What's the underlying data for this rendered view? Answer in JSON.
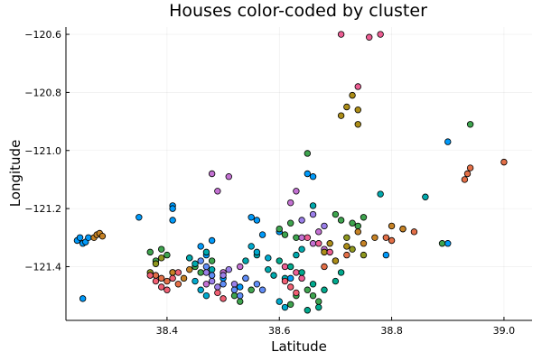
{
  "chart_data": {
    "type": "scatter",
    "title": "Houses color-coded by cluster",
    "xlabel": "Latitude",
    "ylabel": "Longitude",
    "xlim": [
      38.22,
      39.05
    ],
    "ylim": [
      -121.585,
      -120.575
    ],
    "xticks": [
      38.4,
      38.6,
      38.8,
      39.0
    ],
    "xtick_labels": [
      "38.4",
      "38.6",
      "38.8",
      "39.0"
    ],
    "yticks": [
      -121.4,
      -121.2,
      -121.0,
      -120.8,
      -120.6
    ],
    "ytick_labels": [
      "−121.4",
      "−121.2",
      "−121.0",
      "−120.8",
      "−120.6"
    ],
    "grid": true,
    "legend": false,
    "colors": [
      "#009AFA",
      "#E36F47",
      "#3EA44E",
      "#C371D2",
      "#AC8D18",
      "#00A9AD",
      "#ED5E93",
      "#C68225",
      "#00A98D",
      "#8E971E",
      "#00A9CD",
      "#9B7FE9",
      "#618DF7",
      "#F05F73"
    ],
    "series": [
      {
        "color_index": 0,
        "x": [
          38.24,
          38.245,
          38.25,
          38.255,
          38.26,
          38.25,
          38.35,
          38.41,
          38.41,
          38.41,
          38.44,
          38.46,
          38.48,
          38.47,
          38.5,
          38.53,
          38.55,
          38.56,
          38.57,
          38.65,
          38.66,
          38.9,
          38.9,
          38.79,
          38.6,
          38.62
        ],
        "y": [
          -121.31,
          -121.3,
          -121.32,
          -121.315,
          -121.3,
          -121.51,
          -121.23,
          -121.19,
          -121.2,
          -121.24,
          -121.37,
          -121.33,
          -121.31,
          -121.36,
          -121.44,
          -121.47,
          -121.23,
          -121.24,
          -121.29,
          -121.08,
          -121.09,
          -120.97,
          -121.32,
          -121.36,
          -121.28,
          -121.44
        ]
      },
      {
        "color_index": 1,
        "x": [
          38.93,
          38.935,
          38.94,
          39.0,
          38.79,
          38.8,
          38.82,
          38.84,
          38.38,
          38.39,
          38.4,
          38.41,
          38.42,
          38.68,
          38.7,
          38.72
        ],
        "y": [
          -121.1,
          -121.08,
          -121.06,
          -121.04,
          -121.3,
          -121.31,
          -121.27,
          -121.28,
          -121.43,
          -121.44,
          -121.45,
          -121.42,
          -121.46,
          -121.4,
          -121.38,
          -121.36
        ]
      },
      {
        "color_index": 2,
        "x": [
          38.94,
          38.89,
          38.65,
          38.37,
          38.38,
          38.39,
          38.4,
          38.45,
          38.46,
          38.48,
          38.52,
          38.53,
          38.55,
          38.6,
          38.61,
          38.62,
          38.63,
          38.65,
          38.66,
          38.67,
          38.7,
          38.71,
          38.73,
          38.74,
          38.75,
          38.62,
          38.63
        ],
        "y": [
          -120.91,
          -121.32,
          -121.01,
          -121.35,
          -121.38,
          -121.34,
          -121.36,
          -121.4,
          -121.42,
          -121.38,
          -121.5,
          -121.52,
          -121.48,
          -121.27,
          -121.29,
          -121.25,
          -121.3,
          -121.48,
          -121.5,
          -121.52,
          -121.22,
          -121.24,
          -121.25,
          -121.26,
          -121.23,
          -121.53,
          -121.5
        ]
      },
      {
        "color_index": 3,
        "x": [
          38.48,
          38.49,
          38.51,
          38.5,
          38.53,
          38.54,
          38.47,
          38.62,
          38.63,
          38.64,
          38.66,
          38.67,
          38.68
        ],
        "y": [
          -121.08,
          -121.14,
          -121.09,
          -121.42,
          -121.4,
          -121.44,
          -121.46,
          -121.18,
          -121.14,
          -121.3,
          -121.32,
          -121.28,
          -121.34
        ]
      },
      {
        "color_index": 4,
        "x": [
          38.72,
          38.73,
          38.74,
          38.74,
          38.71,
          38.69,
          38.68,
          38.7,
          38.72
        ],
        "y": [
          -120.85,
          -120.81,
          -120.86,
          -120.91,
          -120.88,
          -121.32,
          -121.35,
          -121.38,
          -121.33
        ]
      },
      {
        "color_index": 5,
        "x": [
          38.44,
          38.45,
          38.47,
          38.48,
          38.58,
          38.59,
          38.61,
          38.63,
          38.64,
          38.66,
          38.78,
          38.86,
          38.54,
          38.56
        ],
        "y": [
          -121.37,
          -121.39,
          -121.35,
          -121.41,
          -121.41,
          -121.43,
          -121.44,
          -121.36,
          -121.34,
          -121.19,
          -121.15,
          -121.16,
          -121.38,
          -121.36
        ]
      },
      {
        "color_index": 6,
        "x": [
          38.71,
          38.74,
          38.76,
          38.78,
          38.61,
          38.63,
          38.64,
          38.65,
          38.67,
          38.69
        ],
        "y": [
          -120.6,
          -120.78,
          -120.61,
          -120.6,
          -121.4,
          -121.42,
          -121.44,
          -121.3,
          -121.32,
          -121.35
        ]
      },
      {
        "color_index": 7,
        "x": [
          38.27,
          38.275,
          38.28,
          38.285,
          38.41,
          38.43,
          38.44,
          38.74,
          38.75,
          38.77,
          38.8,
          38.82
        ],
        "y": [
          -121.3,
          -121.29,
          -121.285,
          -121.295,
          -121.42,
          -121.44,
          -121.41,
          -121.28,
          -121.32,
          -121.3,
          -121.26,
          -121.27
        ]
      },
      {
        "color_index": 8,
        "x": [
          38.6,
          38.62,
          38.64,
          38.66,
          38.68,
          38.7,
          38.71,
          38.67,
          38.65
        ],
        "y": [
          -121.38,
          -121.4,
          -121.42,
          -121.46,
          -121.48,
          -121.45,
          -121.42,
          -121.54,
          -121.55
        ]
      },
      {
        "color_index": 9,
        "x": [
          38.37,
          38.38,
          38.39,
          38.72,
          38.73,
          38.75
        ],
        "y": [
          -121.42,
          -121.39,
          -121.37,
          -121.3,
          -121.34,
          -121.36
        ]
      },
      {
        "color_index": 10,
        "x": [
          38.45,
          38.46,
          38.47,
          38.55,
          38.56,
          38.58,
          38.6,
          38.61
        ],
        "y": [
          -121.45,
          -121.48,
          -121.5,
          -121.33,
          -121.35,
          -121.37,
          -121.52,
          -121.54
        ]
      },
      {
        "color_index": 11,
        "x": [
          38.47,
          38.48,
          38.49,
          38.5,
          38.51,
          38.52,
          38.64,
          38.66,
          38.68
        ],
        "y": [
          -121.42,
          -121.45,
          -121.47,
          -121.43,
          -121.41,
          -121.46,
          -121.24,
          -121.22,
          -121.26
        ]
      },
      {
        "color_index": 12,
        "x": [
          38.46,
          38.47,
          38.48,
          38.5,
          38.52,
          38.53,
          38.54,
          38.56,
          38.57
        ],
        "y": [
          -121.38,
          -121.4,
          -121.43,
          -121.46,
          -121.48,
          -121.5,
          -121.44,
          -121.46,
          -121.48
        ]
      },
      {
        "color_index": 13,
        "x": [
          38.37,
          38.38,
          38.39,
          38.4,
          38.41,
          38.42,
          38.61,
          38.62,
          38.63,
          38.49,
          38.5
        ],
        "y": [
          -121.43,
          -121.45,
          -121.47,
          -121.48,
          -121.44,
          -121.42,
          -121.45,
          -121.47,
          -121.49,
          -121.49,
          -121.51
        ]
      }
    ]
  }
}
